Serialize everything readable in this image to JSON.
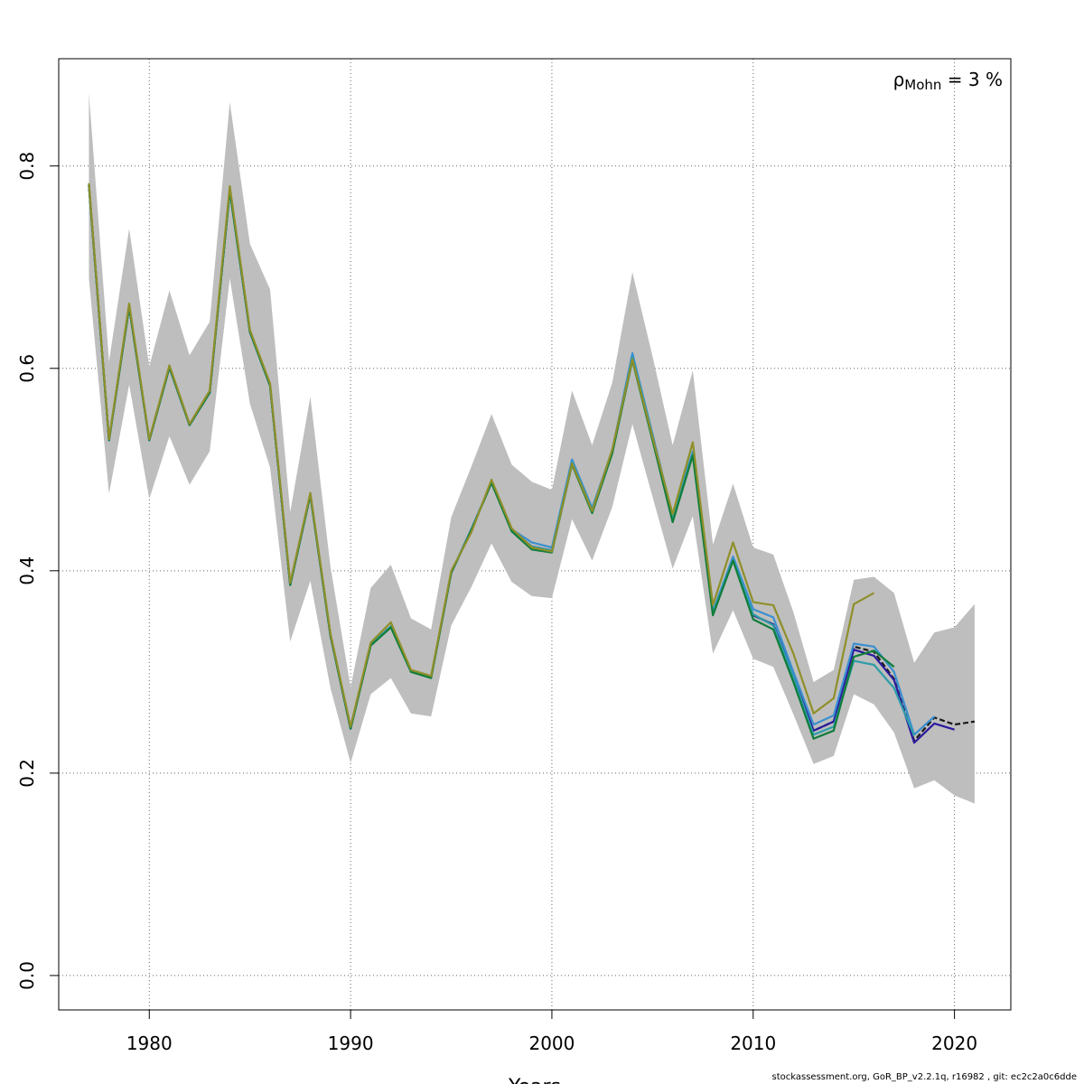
{
  "chart_data": {
    "type": "line",
    "title": "",
    "xlabel": "Years",
    "ylabel": "",
    "xlim": [
      1975.5,
      2022.8
    ],
    "ylim": [
      -0.034,
      0.906
    ],
    "x_ticks": [
      1980,
      1990,
      2000,
      2010,
      2020
    ],
    "y_ticks": [
      0.0,
      0.2,
      0.4,
      0.6,
      0.8
    ],
    "x_tick_labels": [
      "1980",
      "1990",
      "2000",
      "2010",
      "2020"
    ],
    "y_tick_labels": [
      "0.0",
      "0.2",
      "0.4",
      "0.6",
      "0.8"
    ],
    "grid": true,
    "annotation": {
      "symbol": "ρ",
      "subscript": "Mohn",
      "text": " = 3 %"
    },
    "confidence_band": {
      "color": "#bebebe",
      "x": [
        1977,
        1978,
        1979,
        1980,
        1981,
        1982,
        1983,
        1984,
        1985,
        1986,
        1987,
        1988,
        1989,
        1990,
        1991,
        1992,
        1993,
        1994,
        1995,
        1996,
        1997,
        1998,
        1999,
        2000,
        2001,
        2002,
        2003,
        2004,
        2005,
        2006,
        2007,
        2008,
        2009,
        2010,
        2011,
        2012,
        2013,
        2014,
        2015,
        2016,
        2017,
        2018,
        2019,
        2020,
        2021
      ],
      "upper": [
        0.872,
        0.607,
        0.738,
        0.602,
        0.677,
        0.613,
        0.646,
        0.863,
        0.723,
        0.678,
        0.458,
        0.572,
        0.404,
        0.285,
        0.383,
        0.406,
        0.353,
        0.342,
        0.453,
        0.503,
        0.555,
        0.505,
        0.488,
        0.48,
        0.578,
        0.524,
        0.586,
        0.695,
        0.612,
        0.524,
        0.598,
        0.426,
        0.486,
        0.423,
        0.416,
        0.359,
        0.29,
        0.302,
        0.391,
        0.394,
        0.378,
        0.309,
        0.339,
        0.344,
        0.367
      ],
      "lower": [
        0.689,
        0.476,
        0.584,
        0.471,
        0.533,
        0.485,
        0.518,
        0.689,
        0.565,
        0.502,
        0.33,
        0.39,
        0.284,
        0.21,
        0.278,
        0.294,
        0.259,
        0.256,
        0.346,
        0.384,
        0.427,
        0.389,
        0.375,
        0.373,
        0.451,
        0.41,
        0.463,
        0.545,
        0.473,
        0.402,
        0.454,
        0.318,
        0.361,
        0.313,
        0.305,
        0.258,
        0.209,
        0.217,
        0.278,
        0.268,
        0.24,
        0.185,
        0.193,
        0.178,
        0.17
      ]
    },
    "series": [
      {
        "color": "#1a1a1a",
        "dashed": true,
        "x": [
          1977,
          1978,
          1979,
          1980,
          1981,
          1982,
          1983,
          1984,
          1985,
          1986,
          1987,
          1988,
          1989,
          1990,
          1991,
          1992,
          1993,
          1994,
          1995,
          1996,
          1997,
          1998,
          1999,
          2000,
          2001,
          2002,
          2003,
          2004,
          2005,
          2006,
          2007,
          2008,
          2009,
          2010,
          2011,
          2012,
          2013,
          2014,
          2015,
          2016,
          2017,
          2018,
          2019,
          2020,
          2021
        ],
        "values": [
          0.781,
          0.529,
          0.661,
          0.529,
          0.601,
          0.544,
          0.576,
          0.776,
          0.636,
          0.583,
          0.386,
          0.475,
          0.336,
          0.244,
          0.327,
          0.345,
          0.301,
          0.295,
          0.398,
          0.441,
          0.487,
          0.44,
          0.424,
          0.42,
          0.508,
          0.46,
          0.518,
          0.612,
          0.534,
          0.452,
          0.517,
          0.357,
          0.412,
          0.356,
          0.347,
          0.296,
          0.242,
          0.251,
          0.325,
          0.32,
          0.293,
          0.232,
          0.255,
          0.248,
          0.251
        ]
      },
      {
        "color": "#2a1a9e",
        "x": [
          1977,
          1978,
          1979,
          1980,
          1981,
          1982,
          1983,
          1984,
          1985,
          1986,
          1987,
          1988,
          1989,
          1990,
          1991,
          1992,
          1993,
          1994,
          1995,
          1996,
          1997,
          1998,
          1999,
          2000,
          2001,
          2002,
          2003,
          2004,
          2005,
          2006,
          2007,
          2008,
          2009,
          2010,
          2011,
          2012,
          2013,
          2014,
          2015,
          2016,
          2017,
          2018,
          2019,
          2020
        ],
        "values": [
          0.781,
          0.529,
          0.661,
          0.529,
          0.601,
          0.544,
          0.576,
          0.776,
          0.636,
          0.583,
          0.386,
          0.475,
          0.336,
          0.244,
          0.327,
          0.345,
          0.301,
          0.295,
          0.398,
          0.441,
          0.487,
          0.44,
          0.424,
          0.42,
          0.508,
          0.46,
          0.518,
          0.612,
          0.534,
          0.452,
          0.517,
          0.357,
          0.412,
          0.356,
          0.347,
          0.296,
          0.242,
          0.251,
          0.322,
          0.316,
          0.292,
          0.23,
          0.249,
          0.243
        ]
      },
      {
        "color": "#3a8fd0",
        "x": [
          1977,
          1978,
          1979,
          1980,
          1981,
          1982,
          1983,
          1984,
          1985,
          1986,
          1987,
          1988,
          1989,
          1990,
          1991,
          1992,
          1993,
          1994,
          1995,
          1996,
          1997,
          1998,
          1999,
          2000,
          2001,
          2002,
          2003,
          2004,
          2005,
          2006,
          2007,
          2008,
          2009,
          2010,
          2011,
          2012,
          2013,
          2014,
          2015,
          2016,
          2017,
          2018,
          2019
        ],
        "values": [
          0.781,
          0.529,
          0.661,
          0.529,
          0.601,
          0.544,
          0.576,
          0.776,
          0.636,
          0.583,
          0.386,
          0.475,
          0.336,
          0.244,
          0.327,
          0.345,
          0.301,
          0.295,
          0.398,
          0.441,
          0.487,
          0.441,
          0.428,
          0.423,
          0.51,
          0.462,
          0.519,
          0.615,
          0.535,
          0.454,
          0.518,
          0.36,
          0.414,
          0.362,
          0.354,
          0.3,
          0.248,
          0.257,
          0.328,
          0.325,
          0.3,
          0.238,
          0.256
        ]
      },
      {
        "color": "#2e9da8",
        "x": [
          1977,
          1978,
          1979,
          1980,
          1981,
          1982,
          1983,
          1984,
          1985,
          1986,
          1987,
          1988,
          1989,
          1990,
          1991,
          1992,
          1993,
          1994,
          1995,
          1996,
          1997,
          1998,
          1999,
          2000,
          2001,
          2002,
          2003,
          2004,
          2005,
          2006,
          2007,
          2008,
          2009,
          2010,
          2011,
          2012,
          2013,
          2014,
          2015,
          2016,
          2017,
          2018
        ],
        "values": [
          0.781,
          0.529,
          0.661,
          0.529,
          0.601,
          0.544,
          0.576,
          0.776,
          0.636,
          0.583,
          0.386,
          0.475,
          0.336,
          0.244,
          0.327,
          0.345,
          0.301,
          0.295,
          0.398,
          0.441,
          0.487,
          0.44,
          0.424,
          0.42,
          0.507,
          0.46,
          0.518,
          0.611,
          0.533,
          0.451,
          0.516,
          0.358,
          0.411,
          0.357,
          0.346,
          0.295,
          0.238,
          0.246,
          0.311,
          0.307,
          0.284,
          0.237
        ]
      },
      {
        "color": "#0f7d3a",
        "x": [
          1977,
          1978,
          1979,
          1980,
          1981,
          1982,
          1983,
          1984,
          1985,
          1986,
          1987,
          1988,
          1989,
          1990,
          1991,
          1992,
          1993,
          1994,
          1995,
          1996,
          1997,
          1998,
          1999,
          2000,
          2001,
          2002,
          2003,
          2004,
          2005,
          2006,
          2007,
          2008,
          2009,
          2010,
          2011,
          2012,
          2013,
          2014,
          2015,
          2016,
          2017
        ],
        "values": [
          0.781,
          0.529,
          0.661,
          0.529,
          0.601,
          0.544,
          0.576,
          0.776,
          0.636,
          0.583,
          0.386,
          0.475,
          0.336,
          0.244,
          0.326,
          0.344,
          0.3,
          0.294,
          0.398,
          0.44,
          0.487,
          0.439,
          0.421,
          0.418,
          0.505,
          0.457,
          0.516,
          0.608,
          0.529,
          0.448,
          0.514,
          0.356,
          0.41,
          0.352,
          0.342,
          0.29,
          0.234,
          0.242,
          0.315,
          0.321,
          0.305
        ]
      },
      {
        "color": "#8f8f2a",
        "x": [
          1977,
          1978,
          1979,
          1980,
          1981,
          1982,
          1983,
          1984,
          1985,
          1986,
          1987,
          1988,
          1989,
          1990,
          1991,
          1992,
          1993,
          1994,
          1995,
          1996,
          1997,
          1998,
          1999,
          2000,
          2001,
          2002,
          2003,
          2004,
          2005,
          2006,
          2007,
          2008,
          2009,
          2010,
          2011,
          2012,
          2013,
          2014,
          2015,
          2016
        ],
        "values": [
          0.783,
          0.53,
          0.664,
          0.53,
          0.603,
          0.545,
          0.578,
          0.78,
          0.638,
          0.585,
          0.388,
          0.477,
          0.338,
          0.246,
          0.329,
          0.349,
          0.302,
          0.296,
          0.4,
          0.438,
          0.49,
          0.442,
          0.423,
          0.419,
          0.506,
          0.459,
          0.52,
          0.609,
          0.532,
          0.456,
          0.527,
          0.366,
          0.428,
          0.369,
          0.366,
          0.318,
          0.259,
          0.274,
          0.367,
          0.378
        ]
      }
    ]
  },
  "footer": "stockassessment.org, GoR_BP_v2.2.1q, r16982 , git: ec2c2a0c6dde"
}
